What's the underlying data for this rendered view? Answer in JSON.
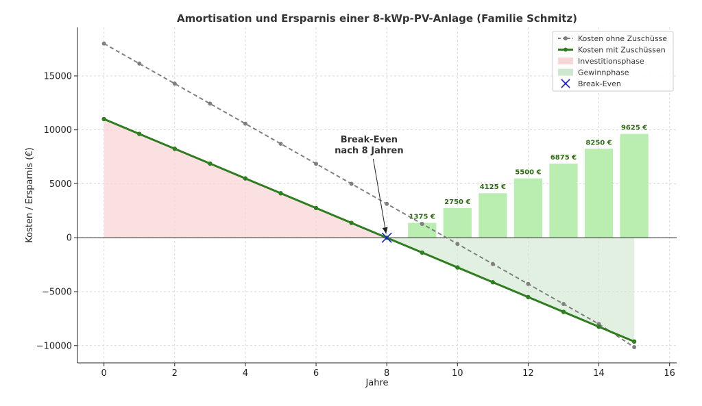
{
  "chart_data": {
    "type": "line",
    "title": "Amortisation und Ersparnis einer 8-kWp-PV-Anlage (Familie Schmitz)",
    "xlabel": "Jahre",
    "ylabel": "Kosten / Ersparnis (€)",
    "xlim": [
      -0.75,
      16.2
    ],
    "ylim": [
      -11600,
      19500
    ],
    "xticks": [
      0,
      2,
      4,
      6,
      8,
      10,
      12,
      14,
      16
    ],
    "yticks": [
      -10000,
      -5000,
      0,
      5000,
      10000,
      15000
    ],
    "ytick_labels": [
      "−10000",
      "−5000",
      "0",
      "5000",
      "10000",
      "15000"
    ],
    "grid": true,
    "legend_position": "top-right",
    "colors": {
      "no_subsidy": "#808080",
      "with_subsidy": "#2e7d1e",
      "investment_fill": "#f8d6d6",
      "profit_fill": "#cfe6cf",
      "bars": "#b9eeb0",
      "bar_text": "#2e6b12",
      "break_even": "#1a1ad6"
    },
    "x": [
      0,
      1,
      2,
      3,
      4,
      5,
      6,
      7,
      8,
      9,
      10,
      11,
      12,
      13,
      14,
      15
    ],
    "series": [
      {
        "name": "Kosten ohne Zuschüsse",
        "style": "dashed",
        "values": [
          18000,
          16143,
          14286,
          12429,
          10571,
          8714,
          6857,
          5000,
          3143,
          1286,
          -571,
          -2429,
          -4286,
          -6143,
          -8000,
          -10143
        ]
      },
      {
        "name": "Kosten mit Zuschüssen",
        "style": "solid",
        "values": [
          11000,
          9625,
          8250,
          6875,
          5500,
          4125,
          2750,
          1375,
          0,
          -1375,
          -2750,
          -4125,
          -5500,
          -6875,
          -8250,
          -9625
        ]
      }
    ],
    "areas": [
      {
        "name": "Investitionsphase",
        "x_range": [
          0,
          8
        ]
      },
      {
        "name": "Gewinnphase",
        "x_range": [
          8,
          15
        ]
      }
    ],
    "bars": {
      "x": [
        9,
        10,
        11,
        12,
        13,
        14,
        15
      ],
      "values": [
        1375,
        2750,
        4125,
        5500,
        6875,
        8250,
        9625
      ],
      "labels": [
        "1375 €",
        "2750 €",
        "4125 €",
        "5500 €",
        "6875 €",
        "8250 €",
        "9625 €"
      ]
    },
    "break_even": {
      "name": "Break-Even",
      "x": 8,
      "y": 0
    },
    "annotation": {
      "lines": [
        "Break-Even",
        "nach 8 Jahren"
      ],
      "text_x": 7.5,
      "text_y": 7700,
      "target_x": 8,
      "target_y": 0
    }
  }
}
